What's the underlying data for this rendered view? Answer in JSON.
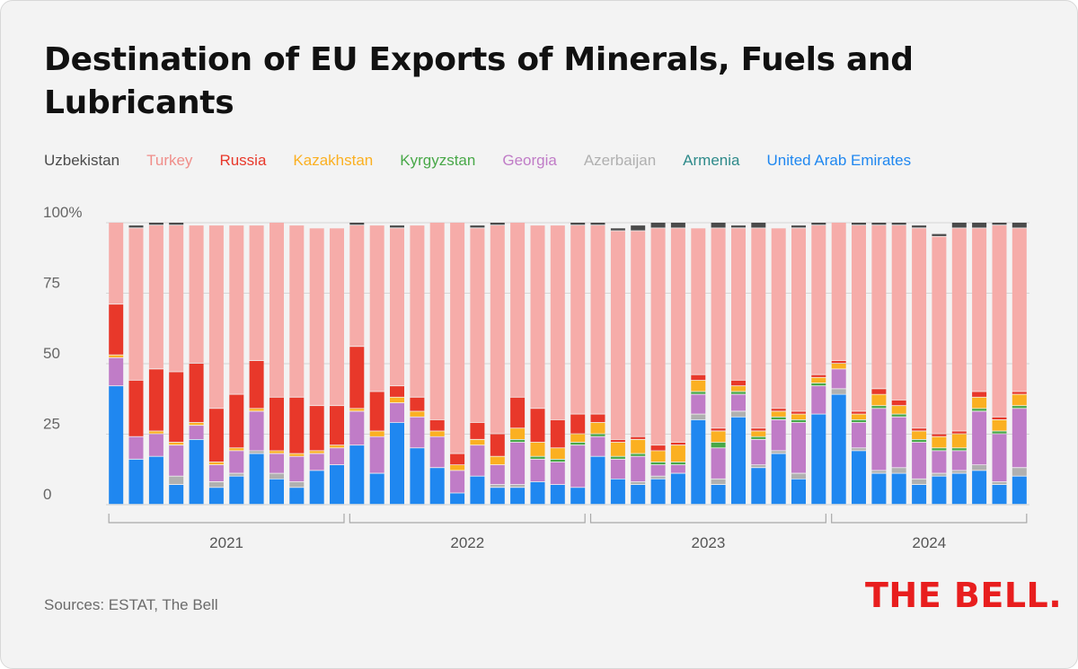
{
  "title": "Destination of EU Exports of Minerals, Fuels and Lubricants",
  "source": "Sources: ESTAT, The Bell",
  "logo": "THE BELL.",
  "chart_data": {
    "type": "bar",
    "stacked": true,
    "title": "Destination of EU Exports of Minerals, Fuels and Lubricants",
    "ylim": [
      0,
      100
    ],
    "yticks": [
      "0",
      "25",
      "50",
      "75",
      "100%"
    ],
    "ytick_values": [
      0,
      25,
      50,
      75,
      100
    ],
    "years": [
      "2021",
      "2022",
      "2023",
      "2024"
    ],
    "months_per_year": 12,
    "legend_placement": "top",
    "series": [
      {
        "name": "United Arab Emirates",
        "color": "#1f87f0",
        "values": [
          42,
          16,
          17,
          7,
          23,
          6,
          10,
          18,
          9,
          6,
          12,
          14,
          21,
          11,
          29,
          20,
          13,
          4,
          10,
          6,
          6,
          8,
          7,
          6,
          17,
          9,
          7,
          9,
          11,
          30,
          7,
          31,
          13,
          18,
          9,
          32,
          39,
          19,
          11,
          11,
          7,
          10,
          11,
          12,
          7,
          10
        ]
      },
      {
        "name": "Armenia",
        "color": "#2e8a8a",
        "values": [
          0,
          0,
          0,
          0,
          0,
          0,
          0,
          0,
          0,
          0,
          0,
          0,
          0,
          0,
          0,
          0,
          0,
          0,
          0,
          0,
          0,
          0,
          0,
          0,
          0,
          0,
          0,
          0,
          0,
          0,
          0,
          0,
          0,
          0,
          0,
          0,
          0,
          0,
          0,
          0,
          0,
          0,
          0,
          0,
          0,
          0
        ]
      },
      {
        "name": "Azerbaijan",
        "color": "#b0b0b0",
        "values": [
          0,
          0,
          0,
          3,
          0,
          2,
          1,
          1,
          2,
          2,
          0,
          0,
          0,
          0,
          0,
          0,
          0,
          0,
          0,
          1,
          1,
          0,
          0,
          0,
          0,
          0,
          1,
          1,
          0,
          2,
          2,
          2,
          1,
          1,
          2,
          0,
          2,
          1,
          1,
          2,
          2,
          1,
          1,
          2,
          1,
          3
        ]
      },
      {
        "name": "Georgia",
        "color": "#c07cc7",
        "values": [
          10,
          8,
          8,
          11,
          5,
          6,
          8,
          14,
          7,
          9,
          6,
          6,
          12,
          13,
          7,
          11,
          11,
          8,
          11,
          7,
          15,
          8,
          8,
          15,
          7,
          7,
          9,
          4,
          3,
          7,
          11,
          6,
          9,
          11,
          18,
          10,
          7,
          9,
          22,
          18,
          13,
          8,
          7,
          19,
          17,
          21
        ]
      },
      {
        "name": "Kyrgyzstan",
        "color": "#48a848",
        "values": [
          0,
          0,
          0,
          0,
          0,
          0,
          0,
          0,
          0,
          0,
          0,
          0,
          0,
          0,
          0,
          0,
          0,
          0,
          0,
          0,
          1,
          1,
          1,
          1,
          1,
          1,
          1,
          1,
          1,
          1,
          2,
          1,
          1,
          1,
          1,
          1,
          0,
          1,
          1,
          1,
          1,
          1,
          1,
          1,
          1,
          1
        ]
      },
      {
        "name": "Kazakhstan",
        "color": "#fbb021",
        "values": [
          1,
          0,
          1,
          1,
          1,
          1,
          1,
          1,
          1,
          1,
          1,
          1,
          1,
          2,
          2,
          2,
          2,
          2,
          2,
          3,
          4,
          5,
          4,
          3,
          4,
          5,
          5,
          4,
          6,
          4,
          4,
          2,
          2,
          2,
          2,
          2,
          2,
          2,
          4,
          3,
          3,
          4,
          5,
          4,
          4,
          4
        ]
      },
      {
        "name": "Russia",
        "color": "#e8382a",
        "values": [
          18,
          20,
          22,
          25,
          21,
          19,
          19,
          17,
          19,
          20,
          16,
          14,
          22,
          14,
          4,
          5,
          4,
          4,
          6,
          8,
          11,
          12,
          10,
          7,
          3,
          1,
          1,
          2,
          1,
          2,
          1,
          2,
          1,
          1,
          1,
          1,
          1,
          1,
          2,
          2,
          1,
          1,
          1,
          2,
          1,
          1
        ]
      },
      {
        "name": "Turkey",
        "color": "#f6aca9",
        "values": [
          29,
          54,
          51,
          52,
          49,
          65,
          60,
          48,
          62,
          61,
          63,
          63,
          43,
          59,
          56,
          61,
          70,
          82,
          69,
          74,
          62,
          65,
          69,
          67,
          67,
          74,
          73,
          77,
          76,
          52,
          71,
          54,
          71,
          64,
          65,
          53,
          49,
          66,
          58,
          62,
          71,
          70,
          72,
          58,
          68,
          58
        ]
      },
      {
        "name": "Uzbekistan",
        "color": "#4b4b4b",
        "values": [
          0,
          1,
          1,
          1,
          0,
          0,
          0,
          0,
          0,
          0,
          0,
          0,
          1,
          0,
          1,
          0,
          0,
          0,
          1,
          1,
          0,
          0,
          0,
          1,
          1,
          1,
          2,
          2,
          2,
          0,
          2,
          1,
          2,
          0,
          1,
          1,
          0,
          1,
          1,
          1,
          1,
          1,
          2,
          2,
          1,
          2
        ]
      }
    ],
    "legend_order": [
      "Uzbekistan",
      "Turkey",
      "Russia",
      "Kazakhstan",
      "Kyrgyzstan",
      "Georgia",
      "Azerbaijan",
      "Armenia",
      "United Arab Emirates"
    ],
    "legend_colors": [
      "#4b4b4b",
      "#f08e8a",
      "#e8382a",
      "#fbb021",
      "#48a848",
      "#c07cc7",
      "#b0b0b0",
      "#2e8a8a",
      "#1f87f0"
    ]
  }
}
